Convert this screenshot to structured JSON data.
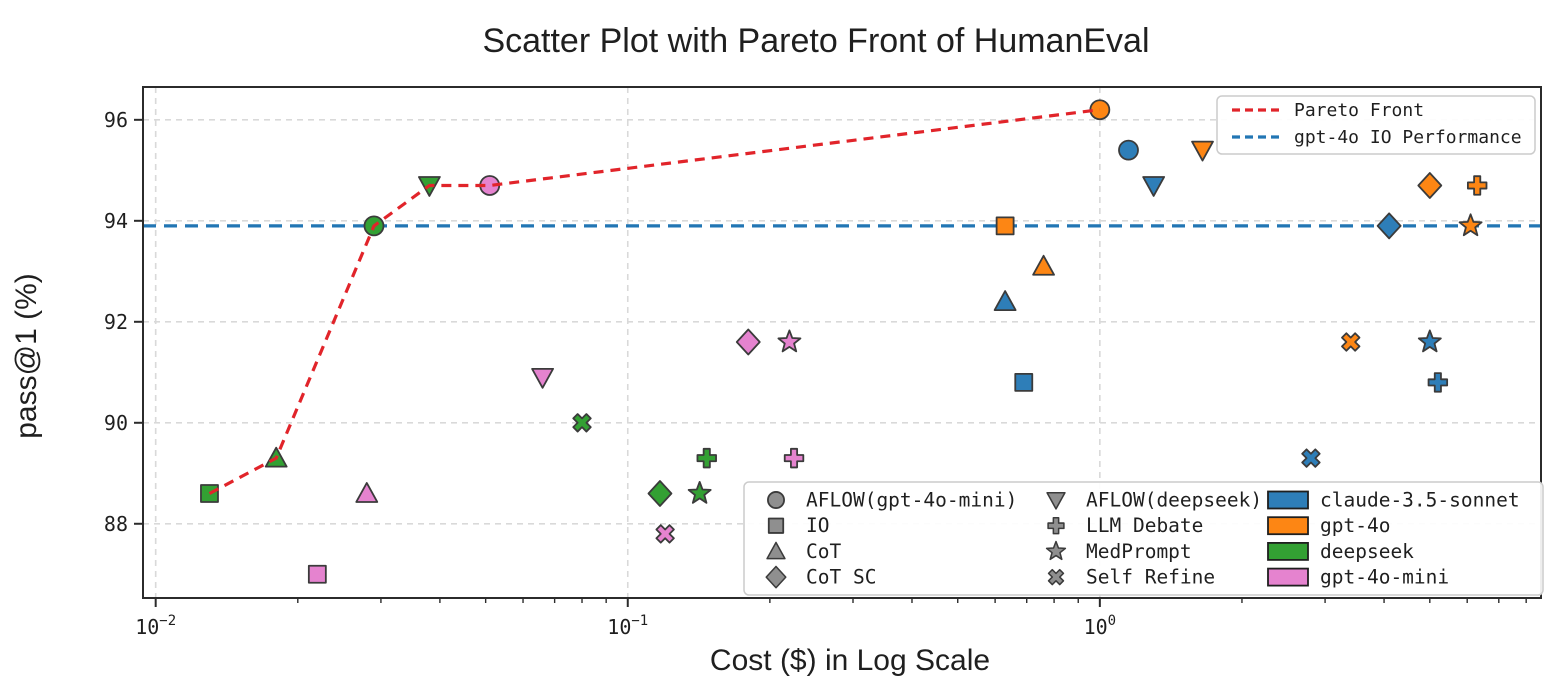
{
  "title": "Scatter Plot with Pareto Front of HumanEval",
  "chart_data": {
    "type": "scatter",
    "title": "Scatter Plot with Pareto Front of HumanEval",
    "xlabel": "Cost ($) in Log Scale",
    "ylabel": "pass@1 (%)",
    "x_scale": "log",
    "grid": true,
    "xlim": [
      0.0094,
      8.6
    ],
    "ylim": [
      86.53,
      96.65
    ],
    "y_ticks": [
      "88",
      "90",
      "92",
      "94",
      "96"
    ],
    "y_tick_values": [
      88,
      90,
      92,
      94,
      96
    ],
    "x_ticks": [
      {
        "value": 0.01,
        "base": "10",
        "exp": "−2"
      },
      {
        "value": 0.1,
        "base": "10",
        "exp": "−1"
      },
      {
        "value": 1,
        "base": "10",
        "exp": "0"
      }
    ],
    "colors": {
      "grid": "#d9d9d9",
      "frame": "#2b2b2b",
      "marker_edge": "#3b3b3b",
      "legend_border": "#cccccc",
      "legend_marker_gray": "#8f8f8f",
      "pareto_red": "#e1242a",
      "reference_blue": "#2276b4"
    },
    "legend_lines": [
      {
        "label": "Pareto Front",
        "color": "#e1242a"
      },
      {
        "label": "gpt-4o IO Performance",
        "color": "#2276b4"
      }
    ],
    "reference_line": {
      "label": "gpt-4o IO Performance",
      "y": 93.9,
      "color": "#2276b4"
    },
    "pareto_front": {
      "label": "Pareto Front",
      "color": "#e1242a",
      "points": [
        [
          0.013,
          88.6
        ],
        [
          0.018,
          89.3
        ],
        [
          0.029,
          93.9
        ],
        [
          0.038,
          94.7
        ],
        [
          0.051,
          94.7
        ],
        [
          1.0,
          96.2
        ]
      ]
    },
    "marker_legend": [
      {
        "marker": "circle",
        "label": "AFLOW(gpt-4o-mini)"
      },
      {
        "marker": "square",
        "label": "IO"
      },
      {
        "marker": "triangle-up",
        "label": "CoT"
      },
      {
        "marker": "diamond",
        "label": "CoT SC"
      },
      {
        "marker": "triangle-down",
        "label": "AFLOW(deepseek)"
      },
      {
        "marker": "plus",
        "label": "LLM Debate"
      },
      {
        "marker": "star",
        "label": "MedPrompt"
      },
      {
        "marker": "x",
        "label": "Self Refine"
      }
    ],
    "color_legend": [
      {
        "label": "claude-3.5-sonnet",
        "color": "#2e7eb8"
      },
      {
        "label": "gpt-4o",
        "color": "#fd8614"
      },
      {
        "label": "deepseek",
        "color": "#33a033"
      },
      {
        "label": "gpt-4o-mini",
        "color": "#e583cf"
      }
    ],
    "series": [
      {
        "name": "claude-3.5-sonnet",
        "color": "#2e7eb8",
        "points": [
          {
            "marker": "circle",
            "cost": 1.15,
            "pass1": 95.4
          },
          {
            "marker": "triangle-down",
            "cost": 1.3,
            "pass1": 94.7
          },
          {
            "marker": "triangle-up",
            "cost": 0.63,
            "pass1": 92.4
          },
          {
            "marker": "square",
            "cost": 0.69,
            "pass1": 90.8
          },
          {
            "marker": "diamond",
            "cost": 4.1,
            "pass1": 93.9
          },
          {
            "marker": "star",
            "cost": 5.0,
            "pass1": 91.6
          },
          {
            "marker": "plus",
            "cost": 5.2,
            "pass1": 90.8
          },
          {
            "marker": "x",
            "cost": 2.8,
            "pass1": 89.3
          }
        ]
      },
      {
        "name": "gpt-4o",
        "color": "#fd8614",
        "points": [
          {
            "marker": "circle",
            "cost": 1.0,
            "pass1": 96.2
          },
          {
            "marker": "square",
            "cost": 0.63,
            "pass1": 93.9
          },
          {
            "marker": "triangle-up",
            "cost": 0.76,
            "pass1": 93.1
          },
          {
            "marker": "triangle-down",
            "cost": 1.65,
            "pass1": 95.4
          },
          {
            "marker": "diamond",
            "cost": 5.0,
            "pass1": 94.7
          },
          {
            "marker": "plus",
            "cost": 6.3,
            "pass1": 94.7
          },
          {
            "marker": "star",
            "cost": 6.1,
            "pass1": 93.9
          },
          {
            "marker": "x",
            "cost": 3.4,
            "pass1": 91.6
          }
        ]
      },
      {
        "name": "deepseek",
        "color": "#33a033",
        "points": [
          {
            "marker": "square",
            "cost": 0.013,
            "pass1": 88.6
          },
          {
            "marker": "triangle-up",
            "cost": 0.018,
            "pass1": 89.3
          },
          {
            "marker": "circle",
            "cost": 0.029,
            "pass1": 93.9
          },
          {
            "marker": "triangle-down",
            "cost": 0.038,
            "pass1": 94.7
          },
          {
            "marker": "x",
            "cost": 0.08,
            "pass1": 90.0
          },
          {
            "marker": "diamond",
            "cost": 0.117,
            "pass1": 88.6
          },
          {
            "marker": "star",
            "cost": 0.142,
            "pass1": 88.6
          },
          {
            "marker": "plus",
            "cost": 0.147,
            "pass1": 89.3
          }
        ]
      },
      {
        "name": "gpt-4o-mini",
        "color": "#e583cf",
        "points": [
          {
            "marker": "square",
            "cost": 0.022,
            "pass1": 87.0
          },
          {
            "marker": "triangle-up",
            "cost": 0.028,
            "pass1": 88.6
          },
          {
            "marker": "circle",
            "cost": 0.051,
            "pass1": 94.7
          },
          {
            "marker": "triangle-down",
            "cost": 0.066,
            "pass1": 90.9
          },
          {
            "marker": "x",
            "cost": 0.12,
            "pass1": 87.8
          },
          {
            "marker": "diamond",
            "cost": 0.18,
            "pass1": 91.6
          },
          {
            "marker": "star",
            "cost": 0.22,
            "pass1": 91.6
          },
          {
            "marker": "plus",
            "cost": 0.225,
            "pass1": 89.3
          }
        ]
      }
    ]
  }
}
